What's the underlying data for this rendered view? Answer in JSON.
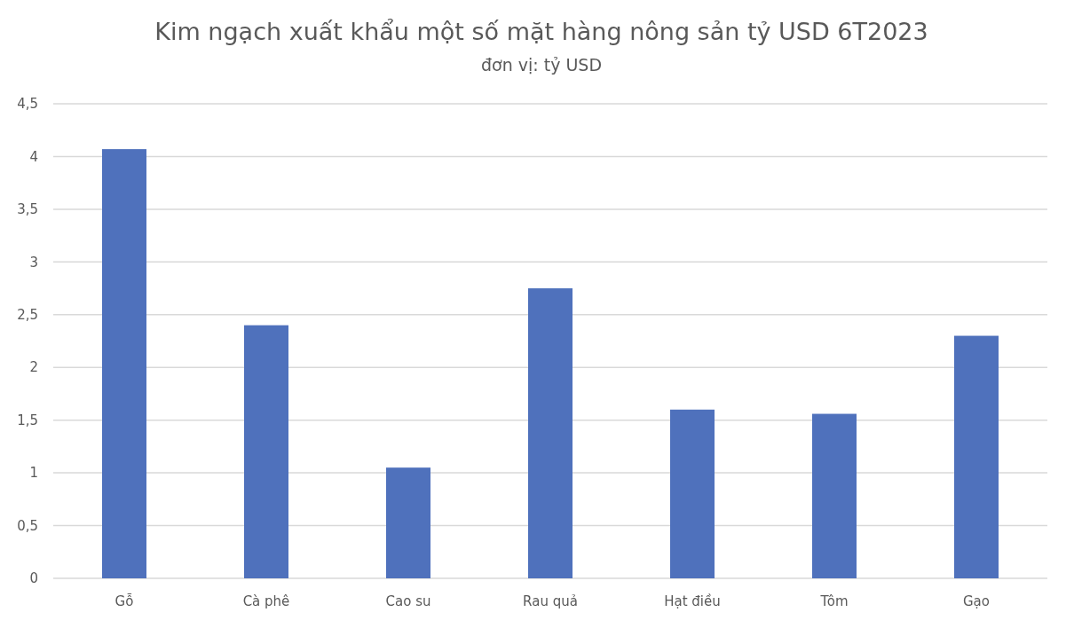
{
  "chart_data": {
    "type": "bar",
    "title": "Kim ngạch xuất khẩu một số mặt hàng nông sản tỷ USD 6T2023",
    "subtitle": "đơn vị: tỷ USD",
    "categories": [
      "Gỗ",
      "Cà phê",
      "Cao su",
      "Rau quả",
      "Hạt điều",
      "Tôm",
      "Gạo"
    ],
    "values": [
      4.07,
      2.4,
      1.05,
      2.75,
      1.6,
      1.56,
      2.3
    ],
    "color": "#4f71bc",
    "ylim": [
      0,
      4.5
    ],
    "yticks": [
      0,
      {
        "value": 0.5,
        "label": "0,5"
      },
      1,
      {
        "value": 1.5,
        "label": "1,5"
      },
      2,
      {
        "value": 2.5,
        "label": "2,5"
      },
      3,
      {
        "value": 3.5,
        "label": "3,5"
      },
      4,
      {
        "value": 4.5,
        "label": "4,5"
      }
    ],
    "grid": "y"
  }
}
